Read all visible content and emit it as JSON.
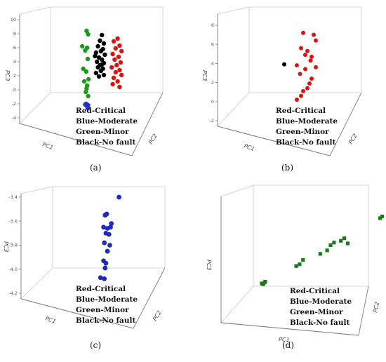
{
  "legend": [
    "Red-Critical",
    "Blue-Moderate",
    "Green-Minor",
    "Black-No fault"
  ],
  "chart_data": [
    {
      "type": "scatter",
      "caption": "(a)",
      "zlabel": "PC3",
      "xlabel": "PC1",
      "ylabel": "PC2",
      "zlim": [
        -4,
        10
      ],
      "zticks": [
        "-4",
        "-2",
        "0",
        "2",
        "4",
        "6",
        "8",
        "10"
      ],
      "series": [
        {
          "color": "#1a9a1a",
          "points": [
            [
              0.12,
              8.4
            ],
            [
              0.2,
              7.9
            ],
            [
              -0.1,
              6.2
            ],
            [
              0.15,
              6.0
            ],
            [
              0.05,
              5.6
            ],
            [
              0.18,
              4.4
            ],
            [
              -0.05,
              3.0
            ],
            [
              0.1,
              2.6
            ],
            [
              0.22,
              1.5
            ],
            [
              0.0,
              1.2
            ],
            [
              0.15,
              0.6
            ],
            [
              0.08,
              -0.3
            ],
            [
              0.2,
              -0.9
            ],
            [
              0.12,
              0.2
            ]
          ]
        },
        {
          "color": "#2233cc",
          "points": [
            [
              0.1,
              -2.0
            ],
            [
              0.2,
              -2.2
            ],
            [
              0.15,
              -2.4
            ],
            [
              0.05,
              -2.1
            ],
            [
              0.18,
              -2.6
            ]
          ]
        },
        {
          "color": "#000000",
          "points": [
            [
              0.9,
              7.8
            ],
            [
              0.8,
              7.0
            ],
            [
              1.0,
              6.6
            ],
            [
              0.7,
              6.2
            ],
            [
              0.95,
              5.8
            ],
            [
              0.85,
              5.5
            ],
            [
              0.6,
              5.3
            ],
            [
              1.05,
              5.0
            ],
            [
              0.75,
              4.6
            ],
            [
              0.9,
              4.3
            ],
            [
              0.65,
              4.0
            ],
            [
              1.0,
              3.8
            ],
            [
              0.8,
              3.5
            ],
            [
              0.7,
              3.2
            ],
            [
              0.95,
              3.0
            ],
            [
              0.85,
              2.7
            ],
            [
              0.6,
              2.4
            ],
            [
              1.0,
              2.1
            ],
            [
              0.75,
              1.9
            ],
            [
              0.9,
              3.6
            ],
            [
              0.55,
              4.8
            ]
          ]
        },
        {
          "color": "#dd1111",
          "points": [
            [
              1.7,
              7.3
            ],
            [
              1.5,
              6.9
            ],
            [
              1.8,
              6.3
            ],
            [
              1.6,
              5.9
            ],
            [
              1.9,
              5.5
            ],
            [
              1.45,
              5.1
            ],
            [
              1.75,
              4.7
            ],
            [
              1.55,
              4.3
            ],
            [
              1.85,
              3.9
            ],
            [
              1.65,
              3.5
            ],
            [
              1.4,
              3.2
            ],
            [
              1.8,
              2.8
            ],
            [
              1.6,
              2.5
            ],
            [
              1.9,
              2.1
            ],
            [
              1.5,
              1.7
            ],
            [
              1.7,
              1.2
            ],
            [
              1.45,
              0.8
            ],
            [
              1.8,
              0.4
            ]
          ]
        }
      ]
    },
    {
      "type": "scatter",
      "caption": "(b)",
      "zlabel": "PC3",
      "xlabel": "PC1",
      "ylabel": "PC2",
      "zlim": [
        -2,
        8
      ],
      "zticks": [
        "-2",
        "0",
        "2",
        "4",
        "6",
        "8"
      ],
      "series": [
        {
          "color": "#000000",
          "points": [
            [
              0.0,
              3.9
            ]
          ]
        },
        {
          "color": "#dd1111",
          "points": [
            [
              0.9,
              7.2
            ],
            [
              1.4,
              7.0
            ],
            [
              1.5,
              6.4
            ],
            [
              0.8,
              5.6
            ],
            [
              1.1,
              5.3
            ],
            [
              1.0,
              4.9
            ],
            [
              1.3,
              4.7
            ],
            [
              1.25,
              4.3
            ],
            [
              0.6,
              3.8
            ],
            [
              1.0,
              3.4
            ],
            [
              1.5,
              3.6
            ],
            [
              0.75,
              2.9
            ],
            [
              1.3,
              2.4
            ],
            [
              1.2,
              1.9
            ],
            [
              1.1,
              1.4
            ],
            [
              0.9,
              1.1
            ],
            [
              0.8,
              0.6
            ],
            [
              0.6,
              0.2
            ]
          ]
        }
      ]
    },
    {
      "type": "scatter",
      "caption": "(c)",
      "zlabel": "PC3",
      "xlabel": "PC1",
      "ylabel": "PC2",
      "zlim": [
        -4.2,
        -3.4
      ],
      "zticks": [
        "-4.2",
        "-4.0",
        "-3.8",
        "-3.6",
        "-3.4"
      ],
      "series": [
        {
          "color": "#1d2bb5",
          "points": [
            [
              1.8,
              -3.4
            ],
            [
              0.9,
              -3.55
            ],
            [
              1.0,
              -3.54
            ],
            [
              1.3,
              -3.62
            ],
            [
              0.8,
              -3.65
            ],
            [
              1.05,
              -3.66
            ],
            [
              1.25,
              -3.65
            ],
            [
              0.95,
              -3.7
            ],
            [
              1.15,
              -3.71
            ],
            [
              0.85,
              -3.78
            ],
            [
              1.2,
              -3.8
            ],
            [
              1.05,
              -3.85
            ],
            [
              0.8,
              -3.93
            ],
            [
              0.95,
              -3.95
            ],
            [
              0.9,
              -3.99
            ],
            [
              0.6,
              -4.07
            ],
            [
              0.85,
              -4.08
            ]
          ]
        }
      ]
    },
    {
      "type": "scatter",
      "caption": "(d)",
      "zlabel": "PC3",
      "xlabel": "PC1",
      "ylabel": "PC2",
      "series": [
        {
          "color": "#1a7a1a",
          "points": [
            [
              2.0,
              0.92
            ],
            [
              1.9,
              0.85
            ],
            [
              1.75,
              0.77
            ],
            [
              1.72,
              0.75
            ],
            [
              1.2,
              0.52
            ],
            [
              1.15,
              0.49
            ],
            [
              1.25,
              0.46
            ],
            [
              1.05,
              0.47
            ],
            [
              1.0,
              0.44
            ],
            [
              0.95,
              0.38
            ],
            [
              0.85,
              0.34
            ],
            [
              0.6,
              0.27
            ],
            [
              0.55,
              0.22
            ],
            [
              0.5,
              0.2
            ],
            [
              0.05,
              0.02
            ],
            [
              0.0,
              0.0
            ],
            [
              0.02,
              -0.01
            ],
            [
              0.04,
              0.01
            ]
          ]
        }
      ]
    }
  ]
}
